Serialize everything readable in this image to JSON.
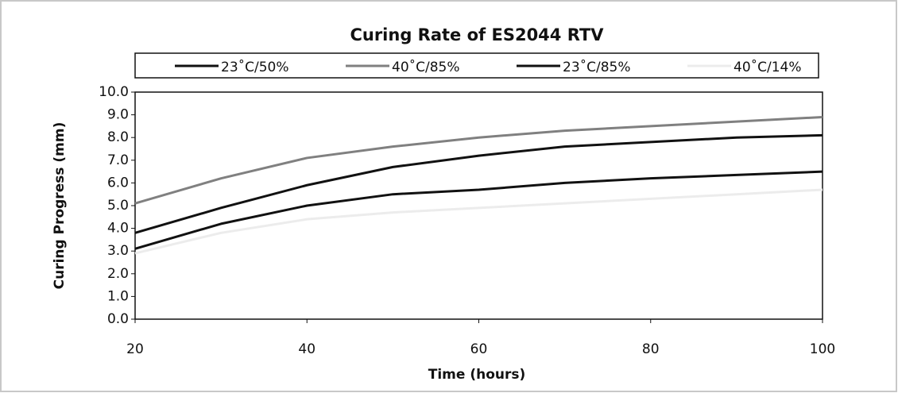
{
  "chart_data": {
    "type": "line",
    "title": "Curing Rate of ES2044 RTV",
    "x_label": "Time (hours)",
    "y_label": "Curing Progress (mm)",
    "x": [
      20,
      30,
      40,
      50,
      60,
      70,
      80,
      90,
      100
    ],
    "series": [
      {
        "name": "23˚C/50%",
        "color": "#111111",
        "values": [
          3.1,
          4.2,
          5.0,
          5.5,
          5.7,
          6.0,
          6.2,
          6.35,
          6.5
        ]
      },
      {
        "name": "40˚C/85%",
        "color": "#808080",
        "values": [
          5.1,
          6.2,
          7.1,
          7.6,
          8.0,
          8.3,
          8.5,
          8.7,
          8.9
        ]
      },
      {
        "name": "23˚C/85%",
        "color": "#111111",
        "values": [
          3.8,
          4.9,
          5.9,
          6.7,
          7.2,
          7.6,
          7.8,
          8.0,
          8.1
        ]
      },
      {
        "name": "40˚C/14%",
        "color": "#ececec",
        "values": [
          2.9,
          3.8,
          4.4,
          4.7,
          4.9,
          5.1,
          5.3,
          5.5,
          5.7
        ]
      }
    ],
    "xlim": [
      20,
      100
    ],
    "xticks": [
      20,
      40,
      60,
      80,
      100
    ],
    "ylim": [
      0,
      10
    ],
    "yticks": [
      {
        "value": 0,
        "label": "0.0"
      },
      {
        "value": 1,
        "label": "1.0"
      },
      {
        "value": 2,
        "label": "2.0"
      },
      {
        "value": 3,
        "label": "3.0"
      },
      {
        "value": 4,
        "label": "4.0"
      },
      {
        "value": 5,
        "label": "5.0"
      },
      {
        "value": 6,
        "label": "6.0"
      },
      {
        "value": 7,
        "label": "7.0"
      },
      {
        "value": 8,
        "label": "8.0"
      },
      {
        "value": 9,
        "label": "9.0"
      },
      {
        "value": 10,
        "label": "10.0"
      }
    ],
    "legend": "top"
  }
}
